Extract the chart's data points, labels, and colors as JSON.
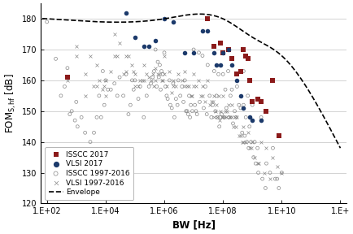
{
  "title": "",
  "xlabel": "BW [Hz]",
  "ylabel": "FOM$_{S,hf}$ [dB]",
  "xlim_log": [
    2,
    12
  ],
  "ylim": [
    120,
    185
  ],
  "yticks": [
    120,
    130,
    140,
    150,
    160,
    170,
    180
  ],
  "xtick_labels": [
    "1.E+02",
    "1.E+04",
    "1.E+06",
    "1.E+08",
    "1.E+10",
    "1.E+"
  ],
  "xtick_positions": [
    100,
    10000,
    1000000,
    100000000,
    10000000000,
    1000000000000
  ],
  "isscc_2017": [
    [
      500,
      161
    ],
    [
      30000000,
      180
    ],
    [
      50000000,
      171
    ],
    [
      80000000,
      172
    ],
    [
      100000000,
      169
    ],
    [
      150000000,
      170
    ],
    [
      200000000,
      167
    ],
    [
      300000000,
      162
    ],
    [
      400000000,
      163
    ],
    [
      500000000,
      170
    ],
    [
      600000000,
      168
    ],
    [
      700000000,
      167
    ],
    [
      800000000,
      160
    ],
    [
      1000000000,
      153
    ],
    [
      1500000000,
      154
    ],
    [
      2000000000,
      153
    ],
    [
      3000000000,
      150
    ],
    [
      5000000000,
      160
    ],
    [
      8000000000,
      142
    ]
  ],
  "vlsi_2017": [
    [
      50000,
      182
    ],
    [
      100000,
      174
    ],
    [
      200000,
      171
    ],
    [
      300000,
      171
    ],
    [
      500000,
      173
    ],
    [
      1000000,
      180
    ],
    [
      2000000,
      179
    ],
    [
      5000000,
      169
    ],
    [
      10000000,
      169
    ],
    [
      20000000,
      176
    ],
    [
      30000000,
      176
    ],
    [
      50000000,
      169
    ],
    [
      60000000,
      165
    ],
    [
      80000000,
      165
    ],
    [
      100000000,
      169
    ],
    [
      150000000,
      170
    ],
    [
      200000000,
      165
    ],
    [
      300000000,
      160
    ],
    [
      400000000,
      155
    ],
    [
      500000000,
      151
    ],
    [
      800000000,
      148
    ],
    [
      1000000000,
      147
    ],
    [
      2000000000,
      147
    ]
  ],
  "isscc_1997_2016": [
    [
      100,
      179
    ],
    [
      200,
      167
    ],
    [
      300,
      155
    ],
    [
      400,
      158
    ],
    [
      500,
      164
    ],
    [
      600,
      149
    ],
    [
      700,
      150
    ],
    [
      900,
      147
    ],
    [
      1000,
      153
    ],
    [
      1100,
      145
    ],
    [
      1500,
      148
    ],
    [
      2000,
      143
    ],
    [
      3000,
      140
    ],
    [
      4000,
      143
    ],
    [
      5000,
      148
    ],
    [
      6000,
      155
    ],
    [
      7000,
      148
    ],
    [
      8000,
      163
    ],
    [
      9000,
      152
    ],
    [
      10000,
      160
    ],
    [
      12000,
      157
    ],
    [
      15000,
      157
    ],
    [
      20000,
      159
    ],
    [
      25000,
      155
    ],
    [
      30000,
      161
    ],
    [
      40000,
      155
    ],
    [
      50000,
      162
    ],
    [
      60000,
      149
    ],
    [
      70000,
      152
    ],
    [
      80000,
      160
    ],
    [
      90000,
      157
    ],
    [
      100000,
      160
    ],
    [
      130000,
      154
    ],
    [
      150000,
      158
    ],
    [
      200000,
      148
    ],
    [
      250000,
      155
    ],
    [
      300000,
      158
    ],
    [
      350000,
      159
    ],
    [
      400000,
      161
    ],
    [
      450000,
      163
    ],
    [
      500000,
      170
    ],
    [
      550000,
      158
    ],
    [
      600000,
      166
    ],
    [
      650000,
      161
    ],
    [
      700000,
      165
    ],
    [
      750000,
      157
    ],
    [
      800000,
      163
    ],
    [
      900000,
      162
    ],
    [
      1000000,
      169
    ],
    [
      1100000,
      158
    ],
    [
      1200000,
      155
    ],
    [
      1300000,
      154
    ],
    [
      1500000,
      160
    ],
    [
      1600000,
      152
    ],
    [
      1800000,
      151
    ],
    [
      2000000,
      159
    ],
    [
      2200000,
      148
    ],
    [
      2500000,
      154
    ],
    [
      2800000,
      152
    ],
    [
      3000000,
      160
    ],
    [
      3500000,
      155
    ],
    [
      4000000,
      158
    ],
    [
      4500000,
      153
    ],
    [
      5000000,
      160
    ],
    [
      5500000,
      150
    ],
    [
      6000000,
      150
    ],
    [
      6500000,
      149
    ],
    [
      7000000,
      155
    ],
    [
      7500000,
      148
    ],
    [
      8000000,
      152
    ],
    [
      9000000,
      150
    ],
    [
      10000000,
      170
    ],
    [
      11000000,
      152
    ],
    [
      12000000,
      150
    ],
    [
      13000000,
      149
    ],
    [
      15000000,
      169
    ],
    [
      16000000,
      153
    ],
    [
      20000000,
      168
    ],
    [
      22000000,
      151
    ],
    [
      25000000,
      158
    ],
    [
      28000000,
      149
    ],
    [
      30000000,
      165
    ],
    [
      35000000,
      155
    ],
    [
      40000000,
      148
    ],
    [
      45000000,
      152
    ],
    [
      50000000,
      163
    ],
    [
      55000000,
      150
    ],
    [
      60000000,
      155
    ],
    [
      65000000,
      148
    ],
    [
      70000000,
      162
    ],
    [
      75000000,
      145
    ],
    [
      80000000,
      148
    ],
    [
      90000000,
      149
    ],
    [
      100000000,
      162
    ],
    [
      110000000,
      148
    ],
    [
      120000000,
      157
    ],
    [
      130000000,
      151
    ],
    [
      150000000,
      163
    ],
    [
      160000000,
      148
    ],
    [
      180000000,
      155
    ],
    [
      200000000,
      157
    ],
    [
      220000000,
      146
    ],
    [
      250000000,
      150
    ],
    [
      280000000,
      148
    ],
    [
      300000000,
      158
    ],
    [
      350000000,
      152
    ],
    [
      400000000,
      151
    ],
    [
      450000000,
      143
    ],
    [
      500000000,
      152
    ],
    [
      550000000,
      142
    ],
    [
      600000000,
      148
    ],
    [
      650000000,
      140
    ],
    [
      700000000,
      155
    ],
    [
      750000000,
      138
    ],
    [
      800000000,
      145
    ],
    [
      900000000,
      140
    ],
    [
      1000000000,
      152
    ],
    [
      1100000000,
      135
    ],
    [
      1200000000,
      140
    ],
    [
      1300000000,
      133
    ],
    [
      1500000000,
      138
    ],
    [
      1600000000,
      130
    ],
    [
      2000000000,
      148
    ],
    [
      2200000000,
      128
    ],
    [
      2800000000,
      125
    ],
    [
      3000000000,
      133
    ],
    [
      4000000000,
      130
    ],
    [
      5000000000,
      138
    ],
    [
      6000000000,
      128
    ],
    [
      7000000000,
      128
    ],
    [
      8000000000,
      125
    ],
    [
      10000000000,
      130
    ],
    [
      500000000,
      163
    ]
  ],
  "vlsi_1997_2016": [
    [
      500,
      160
    ],
    [
      1000,
      171
    ],
    [
      2000,
      162
    ],
    [
      3000,
      168
    ],
    [
      4000,
      158
    ],
    [
      5000,
      165
    ],
    [
      6000,
      160
    ],
    [
      8000,
      157
    ],
    [
      9000,
      158
    ],
    [
      10000,
      155
    ],
    [
      15000,
      163
    ],
    [
      20000,
      175
    ],
    [
      25000,
      168
    ],
    [
      30000,
      172
    ],
    [
      40000,
      162
    ],
    [
      50000,
      168
    ],
    [
      60000,
      168
    ],
    [
      80000,
      165
    ],
    [
      90000,
      163
    ],
    [
      100000,
      162
    ],
    [
      130000,
      158
    ],
    [
      150000,
      160
    ],
    [
      180000,
      160
    ],
    [
      200000,
      165
    ],
    [
      250000,
      162
    ],
    [
      300000,
      161
    ],
    [
      350000,
      160
    ],
    [
      400000,
      162
    ],
    [
      450000,
      158
    ],
    [
      500000,
      164
    ],
    [
      600000,
      162
    ],
    [
      700000,
      162
    ],
    [
      800000,
      160
    ],
    [
      900000,
      160
    ],
    [
      1000000,
      168
    ],
    [
      1200000,
      158
    ],
    [
      1500000,
      163
    ],
    [
      1800000,
      156
    ],
    [
      2000000,
      160
    ],
    [
      2500000,
      158
    ],
    [
      3000000,
      162
    ],
    [
      4000000,
      160
    ],
    [
      5000000,
      163
    ],
    [
      6000000,
      158
    ],
    [
      7000000,
      158
    ],
    [
      8000000,
      155
    ],
    [
      9000000,
      155
    ],
    [
      10000000,
      162
    ],
    [
      12000000,
      158
    ],
    [
      15000000,
      160
    ],
    [
      18000000,
      155
    ],
    [
      20000000,
      158
    ],
    [
      25000000,
      153
    ],
    [
      30000000,
      160
    ],
    [
      35000000,
      152
    ],
    [
      40000000,
      153
    ],
    [
      45000000,
      153
    ],
    [
      50000000,
      155
    ],
    [
      55000000,
      150
    ],
    [
      60000000,
      152
    ],
    [
      65000000,
      148
    ],
    [
      70000000,
      155
    ],
    [
      75000000,
      147
    ],
    [
      80000000,
      150
    ],
    [
      90000000,
      148
    ],
    [
      100000000,
      155
    ],
    [
      110000000,
      148
    ],
    [
      120000000,
      150
    ],
    [
      130000000,
      148
    ],
    [
      140000000,
      150
    ],
    [
      150000000,
      152
    ],
    [
      160000000,
      148
    ],
    [
      180000000,
      148
    ],
    [
      200000000,
      152
    ],
    [
      220000000,
      145
    ],
    [
      250000000,
      148
    ],
    [
      280000000,
      145
    ],
    [
      300000000,
      148
    ],
    [
      350000000,
      142
    ],
    [
      400000000,
      142
    ],
    [
      450000000,
      140
    ],
    [
      500000000,
      145
    ],
    [
      600000000,
      140
    ],
    [
      700000000,
      143
    ],
    [
      800000000,
      138
    ],
    [
      900000000,
      138
    ],
    [
      1000000000,
      140
    ],
    [
      1200000000,
      135
    ],
    [
      1500000000,
      133
    ],
    [
      1600000000,
      133
    ],
    [
      2000000000,
      140
    ],
    [
      2500000000,
      130
    ],
    [
      3000000000,
      138
    ],
    [
      4000000000,
      128
    ],
    [
      5000000000,
      135
    ],
    [
      7000000000,
      132
    ],
    [
      10000000000,
      130
    ],
    [
      1000,
      168
    ],
    [
      2000,
      155
    ],
    [
      5000,
      158
    ],
    [
      10000,
      160
    ],
    [
      20000,
      168
    ],
    [
      50000,
      163
    ],
    [
      100000,
      158
    ],
    [
      200000,
      160
    ],
    [
      500000,
      160
    ],
    [
      1000000,
      162
    ],
    [
      2000000,
      158
    ],
    [
      5000000,
      158
    ],
    [
      10000000,
      158
    ],
    [
      20000000,
      155
    ],
    [
      50000000,
      148
    ],
    [
      100000000,
      148
    ],
    [
      200000000,
      148
    ],
    [
      500000000,
      140
    ]
  ],
  "envelope_x_log": [
    -0.3,
    2.0,
    6.0,
    8.0,
    9.0,
    10.0,
    11.5,
    12.0
  ],
  "envelope_y": [
    180,
    180,
    180,
    180,
    174,
    168,
    147,
    138
  ],
  "colors": {
    "isscc_2017": "#8B1A1A",
    "vlsi_2017": "#1C3A6B",
    "isscc_1997_2016_edge": "#888888",
    "vlsi_1997_2016": "#888888"
  },
  "bg_color": "#ffffff",
  "grid_color": "#cccccc",
  "legend_fontsize": 6.5,
  "axis_fontsize": 8.5,
  "tick_fontsize": 7
}
